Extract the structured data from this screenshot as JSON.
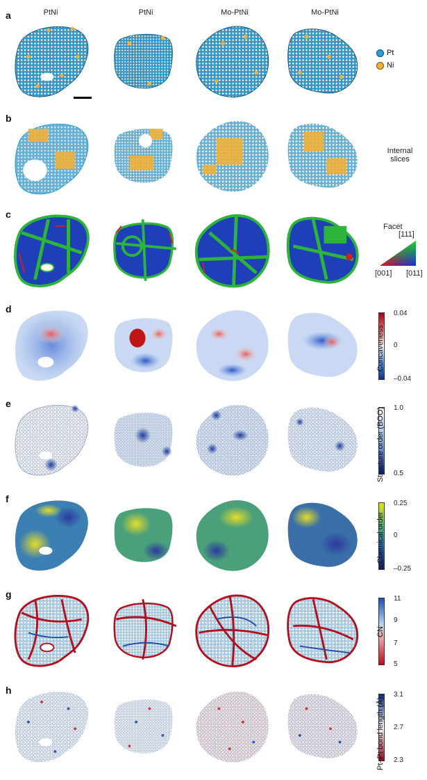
{
  "columns": [
    "PtNi",
    "PtNi",
    "Mo-PtNi",
    "Mo-PtNi"
  ],
  "rows": [
    {
      "label": "a"
    },
    {
      "label": "b"
    },
    {
      "label": "c"
    },
    {
      "label": "d"
    },
    {
      "label": "e"
    },
    {
      "label": "f"
    },
    {
      "label": "g"
    },
    {
      "label": "h"
    }
  ],
  "legend_a": {
    "pt": "Pt",
    "ni": "Ni",
    "pt_color": "#2a9fd6",
    "ni_color": "#f0b13a"
  },
  "slices_label": "Internal\nslices",
  "facet": {
    "title": "Facet",
    "top": "[111]",
    "left": "[001]",
    "right": "[011]"
  },
  "concaveness": {
    "label": "Concaveness",
    "max": "0.04",
    "mid": "0",
    "min": "–0.04"
  },
  "structure": {
    "label": "Structure order (BOO)",
    "max": "1.0",
    "min": "0.5"
  },
  "chemical": {
    "label": "Chemical order",
    "max": "0.25",
    "mid": "0",
    "min": "–0.25"
  },
  "cn": {
    "label": "CN",
    "t1": "11",
    "t2": "9",
    "t3": "7",
    "t4": "5"
  },
  "bond": {
    "label": "Pt–Pt bond length (Å)",
    "max": "3.1",
    "mid": "2.7",
    "min": "2.3"
  }
}
